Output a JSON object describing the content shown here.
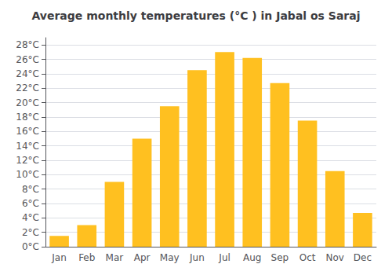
{
  "chart_data": {
    "type": "bar",
    "title": "Average monthly temperatures (°C ) in Jabal os Saraj",
    "categories": [
      "Jan",
      "Feb",
      "Mar",
      "Apr",
      "May",
      "Jun",
      "Jul",
      "Aug",
      "Sep",
      "Oct",
      "Nov",
      "Dec"
    ],
    "values": [
      1.5,
      3.0,
      9.0,
      15.0,
      19.5,
      24.5,
      27.0,
      26.2,
      22.7,
      17.5,
      10.5,
      4.7
    ],
    "color": "#FFC020",
    "ylim": [
      0,
      29
    ],
    "yticks": [
      {
        "value": 0,
        "label": "0°C"
      },
      {
        "value": 2,
        "label": "2°C"
      },
      {
        "value": 4,
        "label": "4°C"
      },
      {
        "value": 6,
        "label": "6°C"
      },
      {
        "value": 8,
        "label": "8°C"
      },
      {
        "value": 10,
        "label": "10°C"
      },
      {
        "value": 12,
        "label": "12°C"
      },
      {
        "value": 14,
        "label": "14°C"
      },
      {
        "value": 16,
        "label": "16°C"
      },
      {
        "value": 18,
        "label": "18°C"
      },
      {
        "value": 20,
        "label": "20°C"
      },
      {
        "value": 22,
        "label": "22°C"
      },
      {
        "value": 24,
        "label": "24°C"
      },
      {
        "value": 26,
        "label": "26°C"
      },
      {
        "value": 28,
        "label": "28°C"
      }
    ],
    "grid": true
  }
}
